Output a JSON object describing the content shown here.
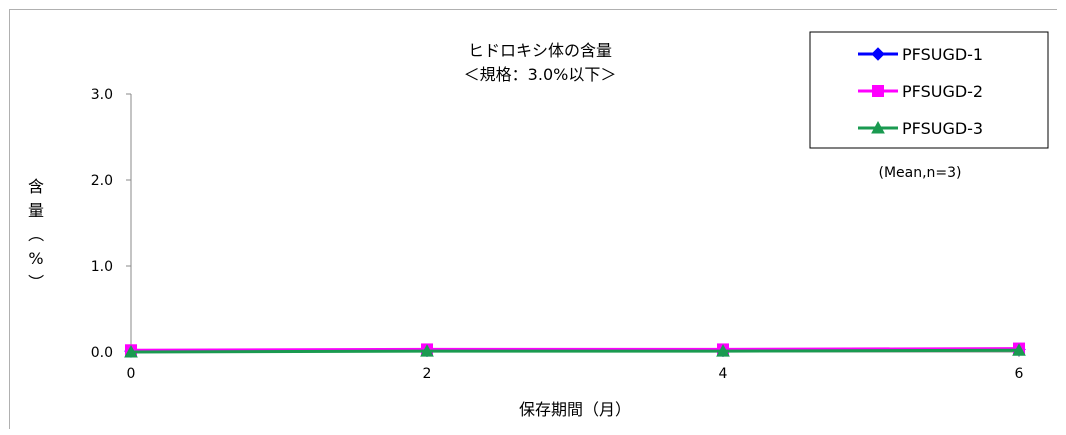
{
  "chart_data": {
    "type": "line",
    "title": "ヒドロキシ体の含量",
    "subtitle": "＜規格：3.0%以下＞",
    "xlabel": "保存期間（月）",
    "ylabel": "含量（%）",
    "note": "(Mean,n=3)",
    "x": [
      0,
      2,
      4,
      6
    ],
    "x_tick_labels": [
      "0",
      "2",
      "4",
      "6"
    ],
    "xlim": [
      0,
      6
    ],
    "ylim": [
      0,
      3
    ],
    "y_ticks": [
      0,
      1,
      2,
      3
    ],
    "y_tick_labels": [
      "0.0",
      "1.0",
      "2.0",
      "3.0"
    ],
    "grid": false,
    "legend_position": "top-right",
    "series": [
      {
        "name": "PFSUGD-1",
        "values": [
          0.01,
          0.02,
          0.02,
          0.03
        ],
        "color": "#0000ff",
        "marker": "diamond"
      },
      {
        "name": "PFSUGD-2",
        "values": [
          0.02,
          0.03,
          0.03,
          0.04
        ],
        "color": "#ff00ff",
        "marker": "square"
      },
      {
        "name": "PFSUGD-3",
        "values": [
          0.0,
          0.01,
          0.01,
          0.02
        ],
        "color": "#1a9a50",
        "marker": "triangle"
      }
    ]
  }
}
